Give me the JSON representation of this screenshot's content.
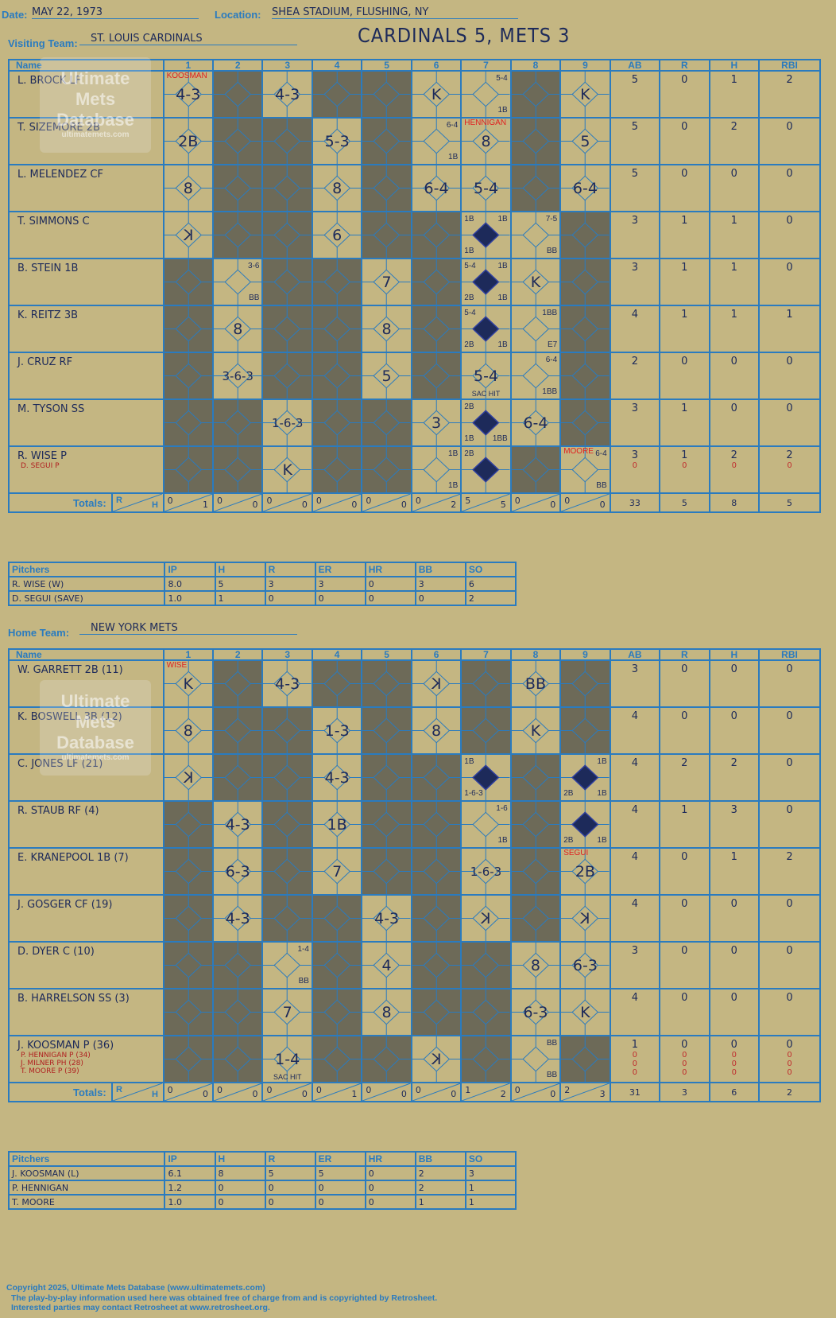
{
  "header": {
    "date_label": "Date:",
    "date": "MAY 22, 1973",
    "location_label": "Location:",
    "location": "SHEA STADIUM, FLUSHING, NY",
    "visiting_label": "Visiting Team:",
    "visiting_team": "ST. LOUIS CARDINALS",
    "home_label": "Home Team:",
    "home_team": "NEW YORK METS",
    "result": "CARDINALS 5, METS 3"
  },
  "columns": {
    "name": "Name",
    "innings": [
      "1",
      "2",
      "3",
      "4",
      "5",
      "6",
      "7",
      "8",
      "9"
    ],
    "ab": "AB",
    "r": "R",
    "h": "H",
    "rbi": "RBI",
    "totals": "Totals:",
    "r_small": "R",
    "h_small": "H"
  },
  "watermark": {
    "line1": "Ultimate",
    "line2": "Mets",
    "line3": "Database",
    "url": "ultimatemets.com"
  },
  "visitors": {
    "rows": [
      {
        "name": "L. BROCK LF",
        "subs": [],
        "ab": "5",
        "r": "0",
        "h": "1",
        "rbi": "2",
        "sub_stats": []
      },
      {
        "name": "T. SIZEMORE 2B",
        "subs": [],
        "ab": "5",
        "r": "0",
        "h": "2",
        "rbi": "0",
        "sub_stats": []
      },
      {
        "name": "L. MELENDEZ CF",
        "subs": [],
        "ab": "5",
        "r": "0",
        "h": "0",
        "rbi": "0",
        "sub_stats": []
      },
      {
        "name": "T. SIMMONS C",
        "subs": [],
        "ab": "3",
        "r": "1",
        "h": "1",
        "rbi": "0",
        "sub_stats": []
      },
      {
        "name": "B. STEIN 1B",
        "subs": [],
        "ab": "3",
        "r": "1",
        "h": "1",
        "rbi": "0",
        "sub_stats": []
      },
      {
        "name": "K. REITZ 3B",
        "subs": [],
        "ab": "4",
        "r": "1",
        "h": "1",
        "rbi": "1",
        "sub_stats": []
      },
      {
        "name": "J. CRUZ RF",
        "subs": [],
        "ab": "2",
        "r": "0",
        "h": "0",
        "rbi": "0",
        "sub_stats": []
      },
      {
        "name": "M. TYSON SS",
        "subs": [],
        "ab": "3",
        "r": "1",
        "h": "0",
        "rbi": "0",
        "sub_stats": []
      },
      {
        "name": "R. WISE P",
        "subs": [
          "D. SEGUI P"
        ],
        "ab": "3",
        "r": "1",
        "h": "2",
        "rbi": "2",
        "sub_stats": [
          [
            "0",
            "0",
            "0",
            "0"
          ]
        ]
      }
    ],
    "cells": [
      [
        "4-3",
        "d",
        "4-3",
        "d",
        "d",
        "K",
        "5-4|1B",
        "d",
        "K"
      ],
      [
        "2B",
        "d",
        "d",
        "5-3",
        "d",
        "6-4|1B",
        "8",
        "d",
        "5"
      ],
      [
        "8",
        "d",
        "d",
        "8",
        "d",
        "6-4",
        "5-4",
        "d",
        "6-4"
      ],
      [
        "K-rev",
        "d",
        "d",
        "6",
        "d",
        "d",
        "RUN:1B,1B,1B",
        "7-5|BB",
        "d"
      ],
      [
        "d",
        "3-6|BB",
        "d",
        "d",
        "7",
        "d",
        "RUN:5-4,1B,2B,1B",
        "K",
        "d"
      ],
      [
        "d",
        "8",
        "d",
        "d",
        "8",
        "d",
        "RUN:5-4,,2B,1B",
        "1BB|E7",
        "d"
      ],
      [
        "d",
        "3-6-3",
        "d",
        "d",
        "5",
        "d",
        "5-4",
        "6-4|1BB",
        "d"
      ],
      [
        "d",
        "d",
        "1-6-3",
        "d",
        "d",
        "3",
        "RUN:2B,,1B,1BB",
        "6-4",
        "d"
      ],
      [
        "d",
        "d",
        "K",
        "d",
        "d",
        "1B|1B",
        "RUN:2B,,,",
        "d",
        "6-4|BB"
      ]
    ],
    "red_notes": [
      {
        "row": 0,
        "col": 0,
        "text": "KOOSMAN"
      },
      {
        "row": 1,
        "col": 6,
        "text": "HENNIGAN"
      },
      {
        "row": 8,
        "col": 8,
        "text": "MOORE"
      }
    ],
    "sac_notes": [
      {
        "row": 6,
        "col": 6,
        "text": "SAC HIT"
      }
    ],
    "totals": {
      "rh": [
        [
          "0",
          "1"
        ],
        [
          "0",
          "0"
        ],
        [
          "0",
          "0"
        ],
        [
          "0",
          "0"
        ],
        [
          "0",
          "0"
        ],
        [
          "0",
          "2"
        ],
        [
          "5",
          "5"
        ],
        [
          "0",
          "0"
        ],
        [
          "0",
          "0"
        ]
      ],
      "ab": "33",
      "r": "5",
      "h": "8",
      "rbi": "5"
    },
    "pitchers_header": [
      "Pitchers",
      "IP",
      "H",
      "R",
      "ER",
      "HR",
      "BB",
      "SO"
    ],
    "pitchers": [
      [
        "R. WISE (W)",
        "8.0",
        "5",
        "3",
        "3",
        "0",
        "3",
        "6"
      ],
      [
        "D. SEGUI (SAVE)",
        "1.0",
        "1",
        "0",
        "0",
        "0",
        "0",
        "2"
      ]
    ]
  },
  "home": {
    "rows": [
      {
        "name": "W. GARRETT 2B (11)",
        "subs": [],
        "ab": "3",
        "r": "0",
        "h": "0",
        "rbi": "0",
        "sub_stats": []
      },
      {
        "name": "K. BOSWELL 3B (12)",
        "subs": [],
        "ab": "4",
        "r": "0",
        "h": "0",
        "rbi": "0",
        "sub_stats": []
      },
      {
        "name": "C. JONES LF (21)",
        "subs": [],
        "ab": "4",
        "r": "2",
        "h": "2",
        "rbi": "0",
        "sub_stats": []
      },
      {
        "name": "R. STAUB RF (4)",
        "subs": [],
        "ab": "4",
        "r": "1",
        "h": "3",
        "rbi": "0",
        "sub_stats": []
      },
      {
        "name": "E. KRANEPOOL 1B (7)",
        "subs": [],
        "ab": "4",
        "r": "0",
        "h": "1",
        "rbi": "2",
        "sub_stats": []
      },
      {
        "name": "J. GOSGER CF (19)",
        "subs": [],
        "ab": "4",
        "r": "0",
        "h": "0",
        "rbi": "0",
        "sub_stats": []
      },
      {
        "name": "D. DYER C (10)",
        "subs": [],
        "ab": "3",
        "r": "0",
        "h": "0",
        "rbi": "0",
        "sub_stats": []
      },
      {
        "name": "B. HARRELSON SS (3)",
        "subs": [],
        "ab": "4",
        "r": "0",
        "h": "0",
        "rbi": "0",
        "sub_stats": []
      },
      {
        "name": "J. KOOSMAN P (36)",
        "subs": [
          "P. HENNIGAN P (34)",
          "J. MILNER PH (28)",
          "T. MOORE P (39)"
        ],
        "ab": "1",
        "r": "0",
        "h": "0",
        "rbi": "0",
        "sub_stats": [
          [
            "0",
            "0",
            "0",
            "0"
          ],
          [
            "0",
            "0",
            "0",
            "0"
          ],
          [
            "0",
            "0",
            "0",
            "0"
          ]
        ]
      }
    ],
    "cells": [
      [
        "K",
        "d",
        "4-3",
        "d",
        "d",
        "K-rev",
        "d",
        "BB",
        "d"
      ],
      [
        "8",
        "d",
        "d",
        "1-3",
        "d",
        "8",
        "d",
        "K",
        "d"
      ],
      [
        "K-rev",
        "d",
        "d",
        "4-3",
        "d",
        "d",
        "RUN:1B,,1-6-3,",
        "d",
        "RUN:,1B,2B,1B"
      ],
      [
        "d",
        "4-3",
        "d",
        "1B",
        "d",
        "d",
        "1-6|1B",
        "d",
        "RUN:,,2B,1B"
      ],
      [
        "d",
        "6-3",
        "d",
        "7",
        "d",
        "d",
        "1-6-3",
        "d",
        "2B"
      ],
      [
        "d",
        "4-3",
        "d",
        "d",
        "4-3",
        "d",
        "K-rev",
        "d",
        "K-rev"
      ],
      [
        "d",
        "d",
        "1-4|BB",
        "d",
        "4",
        "d",
        "d",
        "8",
        "6-3"
      ],
      [
        "d",
        "d",
        "7",
        "d",
        "8",
        "d",
        "d",
        "6-3",
        "K"
      ],
      [
        "d",
        "d",
        "1-4",
        "d",
        "d",
        "K-rev",
        "d",
        "BB|BB",
        "d"
      ]
    ],
    "red_notes": [
      {
        "row": 0,
        "col": 0,
        "text": "WISE"
      },
      {
        "row": 4,
        "col": 8,
        "text": "SEGUI"
      }
    ],
    "sac_notes": [
      {
        "row": 8,
        "col": 2,
        "text": "SAC HIT"
      }
    ],
    "totals": {
      "rh": [
        [
          "0",
          "0"
        ],
        [
          "0",
          "0"
        ],
        [
          "0",
          "0"
        ],
        [
          "0",
          "1"
        ],
        [
          "0",
          "0"
        ],
        [
          "0",
          "0"
        ],
        [
          "1",
          "2"
        ],
        [
          "0",
          "0"
        ],
        [
          "2",
          "3"
        ]
      ],
      "ab": "31",
      "r": "3",
      "h": "6",
      "rbi": "2"
    },
    "pitchers_header": [
      "Pitchers",
      "IP",
      "H",
      "R",
      "ER",
      "HR",
      "BB",
      "SO"
    ],
    "pitchers": [
      [
        "J. KOOSMAN (L)",
        "6.1",
        "8",
        "5",
        "5",
        "0",
        "2",
        "3"
      ],
      [
        "P. HENNIGAN",
        "1.2",
        "0",
        "0",
        "0",
        "0",
        "2",
        "1"
      ],
      [
        "T. MOORE",
        "1.0",
        "0",
        "0",
        "0",
        "0",
        "1",
        "1"
      ]
    ]
  },
  "footer": {
    "line1": "Copyright 2025, Ultimate Mets Database (www.ultimatemets.com)",
    "line2": "The play-by-play information used here was obtained free of charge from and is copyrighted by Retrosheet.",
    "line3": "Interested parties may contact Retrosheet at www.retrosheet.org."
  }
}
